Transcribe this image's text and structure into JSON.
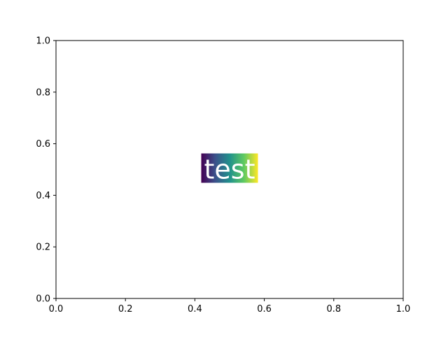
{
  "chart_data": {
    "type": "scatter",
    "title": "",
    "xlabel": "",
    "ylabel": "",
    "xlim": [
      0.0,
      1.0
    ],
    "ylim": [
      0.0,
      1.0
    ],
    "grid": false,
    "x_ticks": [
      0.0,
      0.2,
      0.4,
      0.6,
      0.8,
      1.0
    ],
    "x_tick_labels": [
      "0.0",
      "0.2",
      "0.4",
      "0.6",
      "0.8",
      "1.0"
    ],
    "y_ticks": [
      0.0,
      0.2,
      0.4,
      0.6,
      0.8,
      1.0
    ],
    "y_tick_labels": [
      "0.0",
      "0.2",
      "0.4",
      "0.6",
      "0.8",
      "1.0"
    ],
    "series": [],
    "annotations": [
      {
        "text": "test",
        "x": 0.5,
        "y": 0.5,
        "ha": "center",
        "va": "center",
        "text_color": "#ffffff",
        "background": "viridis-gradient",
        "gradient_colors": [
          "#440154",
          "#3b528b",
          "#21918c",
          "#5ec962",
          "#fde725"
        ]
      }
    ]
  }
}
